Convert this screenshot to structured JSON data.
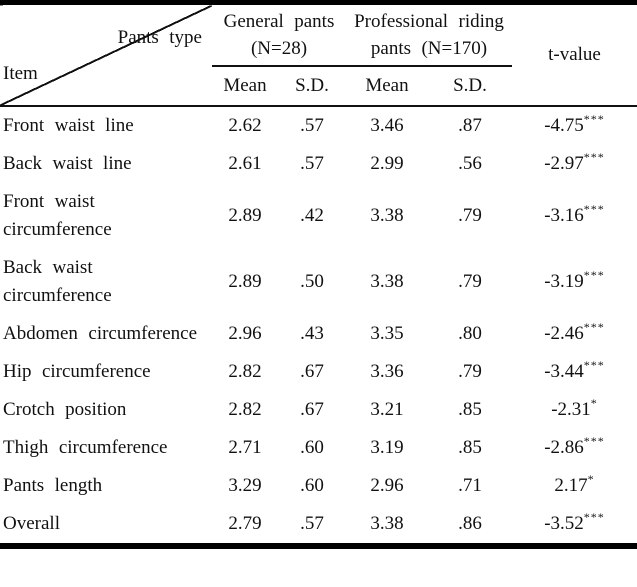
{
  "table": {
    "corner": {
      "top_label": "Pants type",
      "bottom_label": "Item"
    },
    "groups": [
      {
        "line1": "General pants",
        "line2": "(N=28)"
      },
      {
        "line1": "Professional riding",
        "line2": "pants (N=170)"
      }
    ],
    "tvalue_header": "t-value",
    "subheaders": [
      "Mean",
      "S.D.",
      "Mean",
      "S.D."
    ],
    "rows": [
      {
        "item": "Front waist line",
        "m1": "2.62",
        "sd1": ".57",
        "m2": "3.46",
        "sd2": ".87",
        "t": "-4.75",
        "sig": "***"
      },
      {
        "item": "Back waist line",
        "m1": "2.61",
        "sd1": ".57",
        "m2": "2.99",
        "sd2": ".56",
        "t": "-2.97",
        "sig": "***"
      },
      {
        "item": "Front waist circumference",
        "m1": "2.89",
        "sd1": ".42",
        "m2": "3.38",
        "sd2": ".79",
        "t": "-3.16",
        "sig": "***"
      },
      {
        "item": "Back waist circumference",
        "m1": "2.89",
        "sd1": ".50",
        "m2": "3.38",
        "sd2": ".79",
        "t": "-3.19",
        "sig": "***"
      },
      {
        "item": "Abdomen circumference",
        "m1": "2.96",
        "sd1": ".43",
        "m2": "3.35",
        "sd2": ".80",
        "t": "-2.46",
        "sig": "***"
      },
      {
        "item": "Hip circumference",
        "m1": "2.82",
        "sd1": ".67",
        "m2": "3.36",
        "sd2": ".79",
        "t": "-3.44",
        "sig": "***"
      },
      {
        "item": "Crotch position",
        "m1": "2.82",
        "sd1": ".67",
        "m2": "3.21",
        "sd2": ".85",
        "t": "-2.31",
        "sig": "*"
      },
      {
        "item": "Thigh circumference",
        "m1": "2.71",
        "sd1": ".60",
        "m2": "3.19",
        "sd2": ".85",
        "t": "-2.86",
        "sig": "***"
      },
      {
        "item": "Pants length",
        "m1": "3.29",
        "sd1": ".60",
        "m2": "2.96",
        "sd2": ".71",
        "t": "2.17",
        "sig": "*"
      },
      {
        "item": "Overall",
        "m1": "2.79",
        "sd1": ".57",
        "m2": "3.38",
        "sd2": ".86",
        "t": "-3.52",
        "sig": "***"
      }
    ]
  },
  "colors": {
    "rule": "#000000",
    "text": "#111111",
    "background": "#ffffff"
  }
}
